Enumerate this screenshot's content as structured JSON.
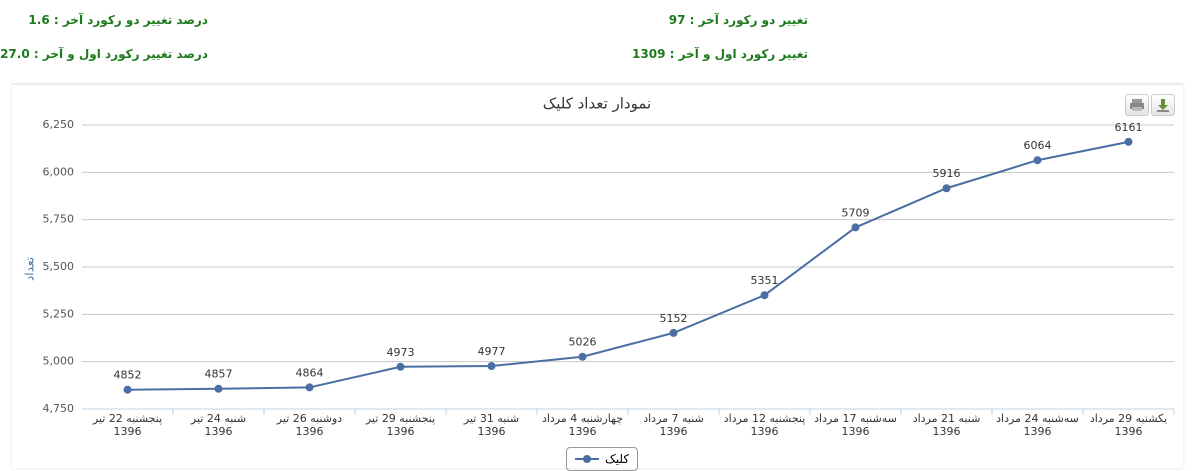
{
  "stats": [
    "درصد تغییر دو رکورد آخر : 1.6",
    "تغییر دو رکورد آخر : 97",
    "درصد تغییر رکورد اول و آخر : 27.0",
    "تغییر رکورد اول و آخر : 1309"
  ],
  "chart_data": {
    "type": "line",
    "title": "نمودار تعداد کلیک",
    "y_label": "تعداد",
    "categories": [
      "پنجشنبه 22 تیر 1396",
      "شنبه 24 تیر 1396",
      "دوشنبه 26 تیر 1396",
      "پنجشنبه 29 تیر 1396",
      "شنبه 31 تیر 1396",
      "چهارشنبه 4 مرداد 1396",
      "شنبه 7 مرداد 1396",
      "پنجشنبه 12 مرداد 1396",
      "سه‌شنبه 17 مرداد 1396",
      "شنبه 21 مرداد 1396",
      "سه‌شنبه 24 مرداد 1396",
      "یکشنبه 29 مرداد 1396"
    ],
    "series": [
      {
        "name": "کلیک",
        "color": "#4a6fa5",
        "values": [
          4852,
          4857,
          4864,
          4973,
          4977,
          5026,
          5152,
          5351,
          5709,
          5916,
          6064,
          6161
        ]
      }
    ],
    "ylim": [
      4750,
      6250
    ],
    "yticks": [
      {
        "value": 4750,
        "label": "4,750"
      },
      {
        "value": 5000,
        "label": "5,000"
      },
      {
        "value": 5250,
        "label": "5,250"
      },
      {
        "value": 5500,
        "label": "5,500"
      },
      {
        "value": 5750,
        "label": "5,750"
      },
      {
        "value": 6000,
        "label": "6,000"
      },
      {
        "value": 6250,
        "label": "6,250"
      }
    ],
    "grid": true,
    "data_labels": true,
    "legend": "bottom"
  }
}
